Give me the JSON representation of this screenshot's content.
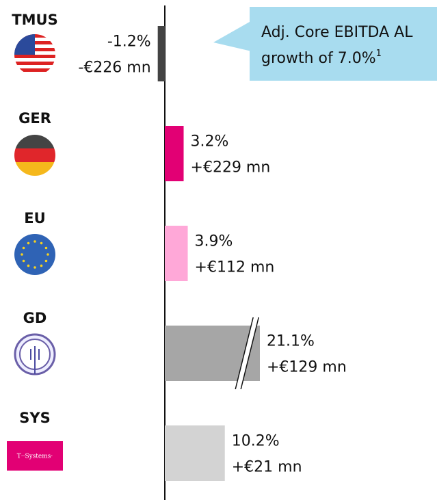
{
  "chart_data": {
    "type": "hbar",
    "categories": [
      "TMUS",
      "GER",
      "EU",
      "GD",
      "SYS"
    ],
    "values": [
      -1.2,
      3.2,
      3.9,
      21.1,
      10.2
    ],
    "value_labels": [
      "-1.2%",
      "3.2%",
      "3.9%",
      "21.1%",
      "10.2%"
    ],
    "amount_labels": [
      "-€226 mn",
      "+€229 mn",
      "+€112 mn",
      "+€129 mn",
      "+€21 mn"
    ],
    "colors": [
      "#434343",
      "#e20074",
      "#ffa8d8",
      "#a6a6a6",
      "#d3d3d3"
    ],
    "annotation": [
      "Adj. Core EBITDA AL",
      "growth of 7.0%"
    ],
    "annotation_footnote": "1",
    "sys_logo": "T··Systems·"
  }
}
